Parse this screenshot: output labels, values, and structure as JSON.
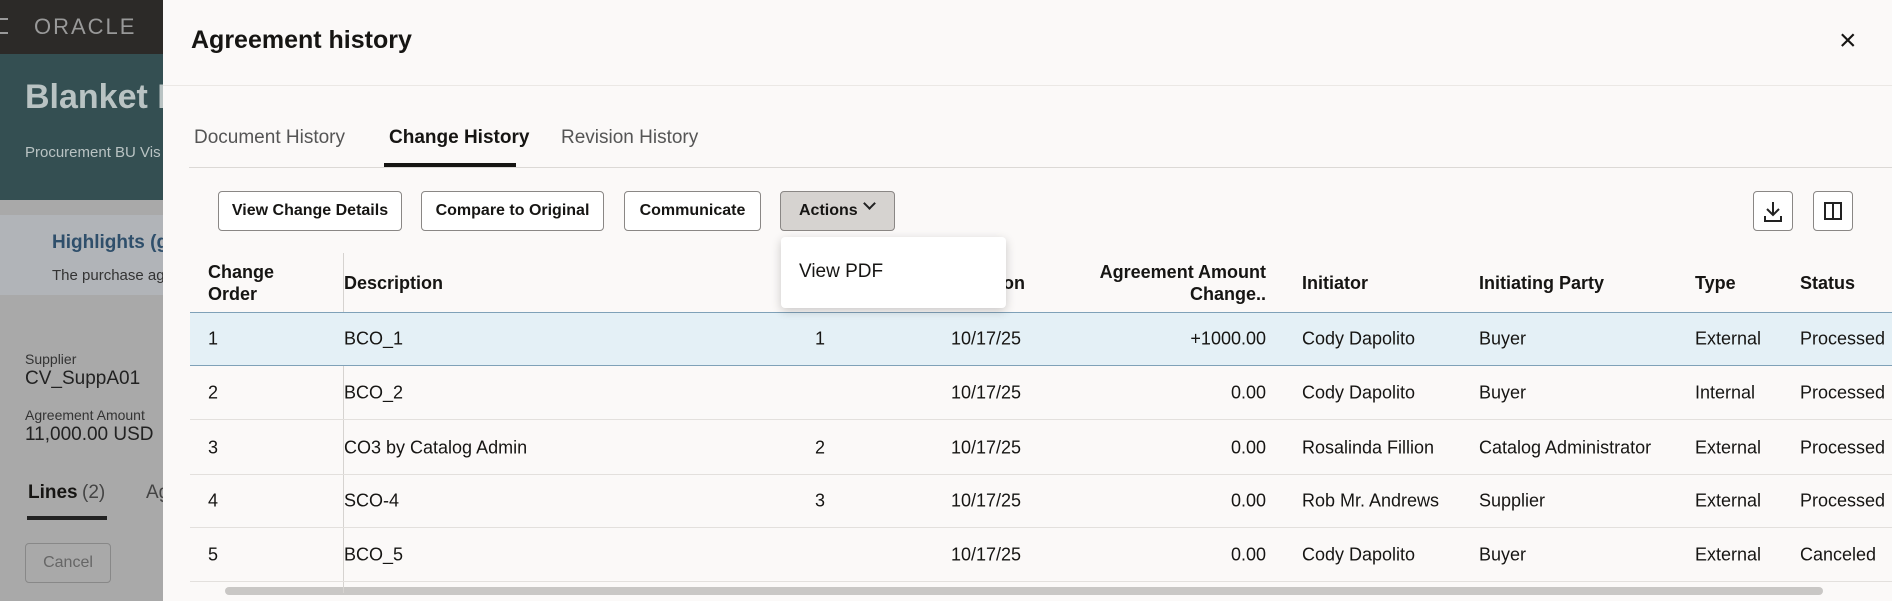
{
  "background": {
    "brand": "ORACLE",
    "page_title": "Blanket P",
    "business_unit": "Procurement BU Vis",
    "highlights_title": "Highlights (g",
    "highlights_text": "The purchase ag",
    "supplier_label": "Supplier",
    "supplier_value": "CV_SuppA01",
    "amount_label": "Agreement Amount",
    "amount_value": "11,000.00 USD",
    "lines_tab": "Lines",
    "lines_count": "(2)",
    "next_tab": "Ag",
    "cancel_button": "Cancel"
  },
  "dialog": {
    "title": "Agreement history",
    "close": "×",
    "tabs": [
      "Document History",
      "Change History",
      "Revision History"
    ],
    "active_tab": 1,
    "buttons": [
      "View Change Details",
      "Compare to Original",
      "Communicate",
      "Actions"
    ],
    "menu": [
      "View PDF"
    ],
    "table": {
      "headers": [
        "Change Order",
        "Description",
        null,
        "on",
        "Agreement Amount Change..",
        "Initiator",
        "Initiating Party",
        "Type",
        "Status"
      ],
      "rows": [
        [
          "1",
          "BCO_1",
          "1",
          "10/17/25",
          "+1000.00",
          "Cody Dapolito",
          "Buyer",
          "External",
          "Processed"
        ],
        [
          "2",
          "BCO_2",
          null,
          "10/17/25",
          "0.00",
          "Cody Dapolito",
          "Buyer",
          "Internal",
          "Processed"
        ],
        [
          "3",
          "CO3 by Catalog Admin",
          "2",
          "10/17/25",
          "0.00",
          "Rosalinda Fillion",
          "Catalog Administrator",
          "External",
          "Processed"
        ],
        [
          "4",
          "SCO-4",
          "3",
          "10/17/25",
          "0.00",
          "Rob Mr. Andrews",
          "Supplier",
          "External",
          "Processed"
        ],
        [
          "5",
          "BCO_5",
          null,
          "10/17/25",
          "0.00",
          "Cody Dapolito",
          "Buyer",
          "External",
          "Canceled"
        ]
      ],
      "selected_row": 0
    }
  }
}
